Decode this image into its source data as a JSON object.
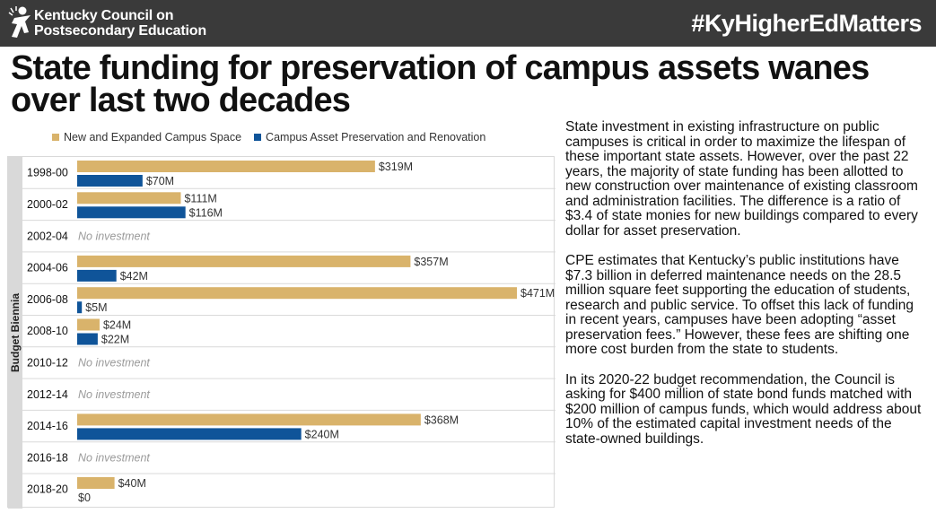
{
  "header": {
    "org_line1": "Kentucky Council on",
    "org_line2": "Postsecondary Education",
    "hashtag": "#KyHigherEdMatters"
  },
  "title_line1": "State funding for preservation of campus assets wanes",
  "title_line2": "over last two decades",
  "body": [
    "State investment in existing infrastructure on public campuses is critical in order to maximize the lifespan of these important state assets. However, over the past 22 years, the majority of state funding has been allotted to new construction over maintenance of existing classroom and administration facilities. The difference is a ratio of $3.4 of state monies for new buildings compared to every dollar for asset preservation.",
    "CPE estimates that Kentucky’s public institutions have $7.3 billion in deferred maintenance needs on the 28.5 million square feet supporting the education of students, research and public service. To offset this lack of funding in recent years, campuses have been adopting “asset preservation fees.” However, these fees are shifting one more cost burden from the state to students.",
    "In its 2020-22 budget recommendation, the Council is asking for $400 million of state bond funds matched with $200 million of campus funds, which would address about 10% of the estimated capital investment needs of the state-owned buildings."
  ],
  "chart_data": {
    "type": "bar",
    "orientation": "horizontal",
    "ylabel": "Budget Biennia",
    "legend_position": "top",
    "categories": [
      "1998-00",
      "2000-02",
      "2002-04",
      "2004-06",
      "2006-08",
      "2008-10",
      "2010-12",
      "2012-14",
      "2014-16",
      "2016-18",
      "2018-20"
    ],
    "series": [
      {
        "name": "New and Expanded Campus Space",
        "color": "#D9B36B",
        "values": [
          319,
          111,
          null,
          357,
          471,
          24,
          null,
          null,
          368,
          null,
          40
        ],
        "labels": [
          "$319M",
          "$111M",
          "",
          "$357M",
          "$471M",
          "$24M",
          "",
          "",
          "$368M",
          "",
          "$40M"
        ]
      },
      {
        "name": "Campus Asset Preservation and Renovation",
        "color": "#0F5499",
        "values": [
          70,
          116,
          null,
          42,
          5,
          22,
          null,
          null,
          240,
          null,
          0
        ],
        "labels": [
          "$70M",
          "$116M",
          "",
          "$42M",
          "$5M",
          "$22M",
          "",
          "",
          "$240M",
          "",
          "$0"
        ]
      }
    ],
    "no_investment_label": "No investment",
    "xlim": [
      0,
      471
    ]
  }
}
